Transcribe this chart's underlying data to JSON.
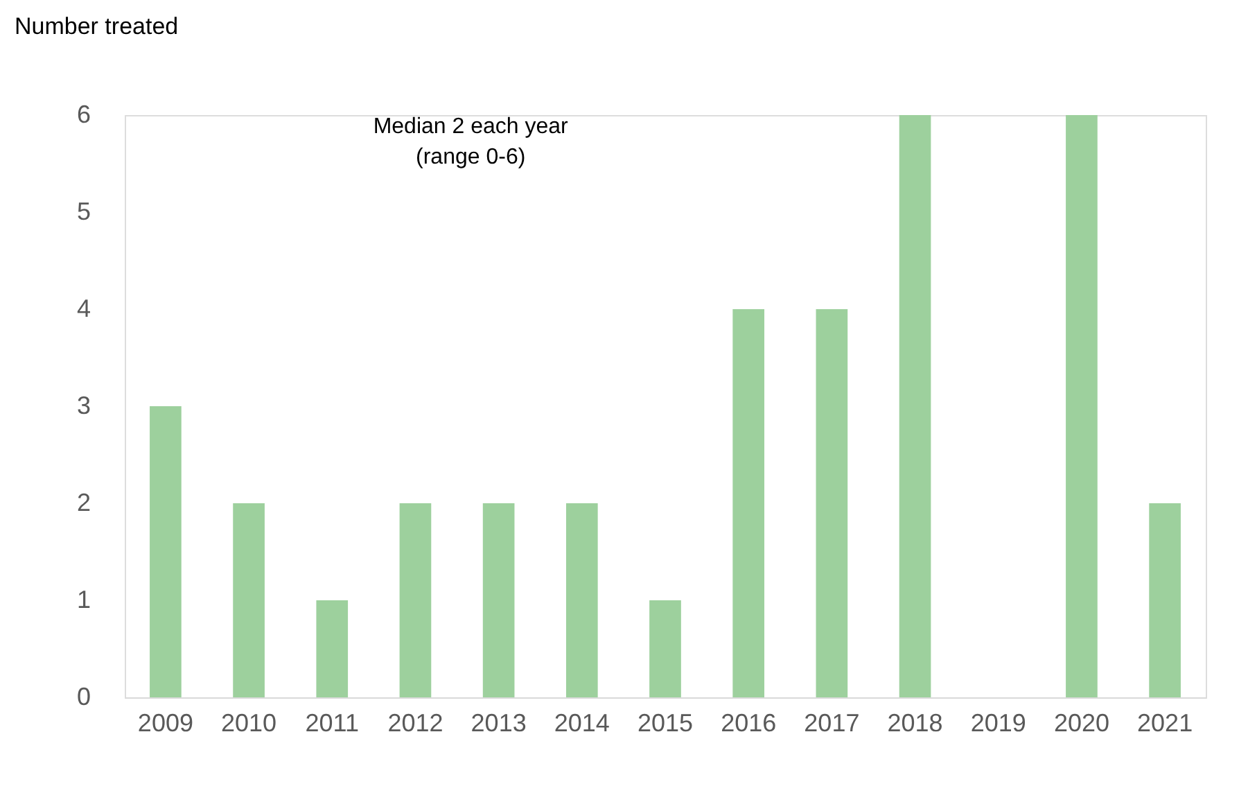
{
  "chart_data": {
    "type": "bar",
    "ylabel": "Number treated",
    "categories": [
      "2009",
      "2010",
      "2011",
      "2012",
      "2013",
      "2014",
      "2015",
      "2016",
      "2017",
      "2018",
      "2019",
      "2020",
      "2021"
    ],
    "values": [
      3,
      2,
      1,
      2,
      2,
      2,
      1,
      4,
      4,
      6,
      0,
      6,
      2
    ],
    "color": "#9dd09d",
    "ylim": [
      0,
      6
    ],
    "yticks": [
      0,
      1,
      2,
      3,
      4,
      5,
      6
    ],
    "grid": false,
    "annotations": [
      "Median 2 each year\n(range 0-6)"
    ]
  }
}
